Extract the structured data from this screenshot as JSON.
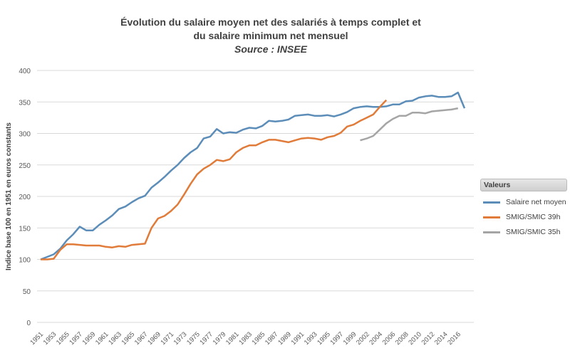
{
  "chart_data": {
    "type": "line",
    "title": "Évolution du salaire moyen net des salariés à temps complet et du salaire minimum net mensuel",
    "title_line1": "Évolution du salaire moyen net des salariés à temps complet et",
    "title_line2": "du salaire minimum net mensuel",
    "subtitle": "Source : INSEE",
    "xlabel": "",
    "ylabel": "Indice base 100 en 1951 en euros constants",
    "ylim": [
      0,
      400
    ],
    "yticks": [
      0,
      50,
      100,
      150,
      200,
      250,
      300,
      350,
      400
    ],
    "grid": true,
    "legend_title": "Valeurs",
    "legend_position": "right",
    "categories": [
      "1951",
      "1952",
      "1953",
      "1954",
      "1955",
      "1956",
      "1957",
      "1958",
      "1959",
      "1960",
      "1961",
      "1962",
      "1963",
      "1964",
      "1965",
      "1966",
      "1967",
      "1968",
      "1969",
      "1970",
      "1971",
      "1972",
      "1973",
      "1974",
      "1975",
      "1976",
      "1977",
      "1978",
      "1979",
      "1980",
      "1981",
      "1982",
      "1983",
      "1984",
      "1985",
      "1986",
      "1987",
      "1988",
      "1989",
      "1990",
      "1991",
      "1992",
      "1993",
      "1994",
      "1995",
      "1996",
      "1997",
      "1998",
      "1999",
      "2001",
      "2002",
      "2003",
      "2004",
      "2005",
      "2006",
      "2007",
      "2008",
      "2009",
      "2010",
      "2011",
      "2012",
      "2013",
      "2014",
      "2015",
      "2016",
      "2017"
    ],
    "series": [
      {
        "name": "Salaire net moyen",
        "color": "#5b8db8",
        "values": [
          100,
          104,
          108,
          117,
          130,
          140,
          152,
          146,
          146,
          155,
          162,
          170,
          180,
          184,
          191,
          197,
          201,
          214,
          222,
          231,
          241,
          250,
          261,
          270,
          277,
          292,
          295,
          307,
          300,
          302,
          301,
          306,
          309,
          308,
          312,
          320,
          319,
          320,
          322,
          328,
          329,
          330,
          328,
          328,
          329,
          327,
          330,
          334,
          340,
          342,
          343,
          342,
          342,
          343,
          346,
          346,
          351,
          352,
          357,
          359,
          360,
          358,
          358,
          359,
          365,
          340
        ]
      },
      {
        "name": "SMIG/SMIC 39h",
        "color": "#e07b39",
        "values": [
          100,
          100,
          101,
          115,
          124,
          124,
          123,
          122,
          122,
          122,
          120,
          119,
          121,
          120,
          123,
          124,
          125,
          150,
          165,
          169,
          177,
          187,
          203,
          220,
          235,
          244,
          250,
          258,
          256,
          259,
          270,
          277,
          281,
          281,
          286,
          290,
          290,
          288,
          286,
          289,
          292,
          293,
          292,
          290,
          294,
          296,
          301,
          311,
          314,
          320,
          325,
          330,
          342,
          353,
          null,
          null,
          null,
          null,
          null,
          null,
          null,
          null,
          null,
          null,
          null,
          null
        ]
      },
      {
        "name": "SMIG/SMIC 35h",
        "color": "#a5a5a5",
        "values": [
          null,
          null,
          null,
          null,
          null,
          null,
          null,
          null,
          null,
          null,
          null,
          null,
          null,
          null,
          null,
          null,
          null,
          null,
          null,
          null,
          null,
          null,
          null,
          null,
          null,
          null,
          null,
          null,
          null,
          null,
          null,
          null,
          null,
          null,
          null,
          null,
          null,
          null,
          null,
          null,
          null,
          null,
          null,
          null,
          null,
          null,
          null,
          null,
          null,
          289,
          292,
          296,
          306,
          316,
          323,
          328,
          328,
          333,
          333,
          332,
          335,
          336,
          337,
          338,
          340,
          null
        ]
      }
    ]
  }
}
